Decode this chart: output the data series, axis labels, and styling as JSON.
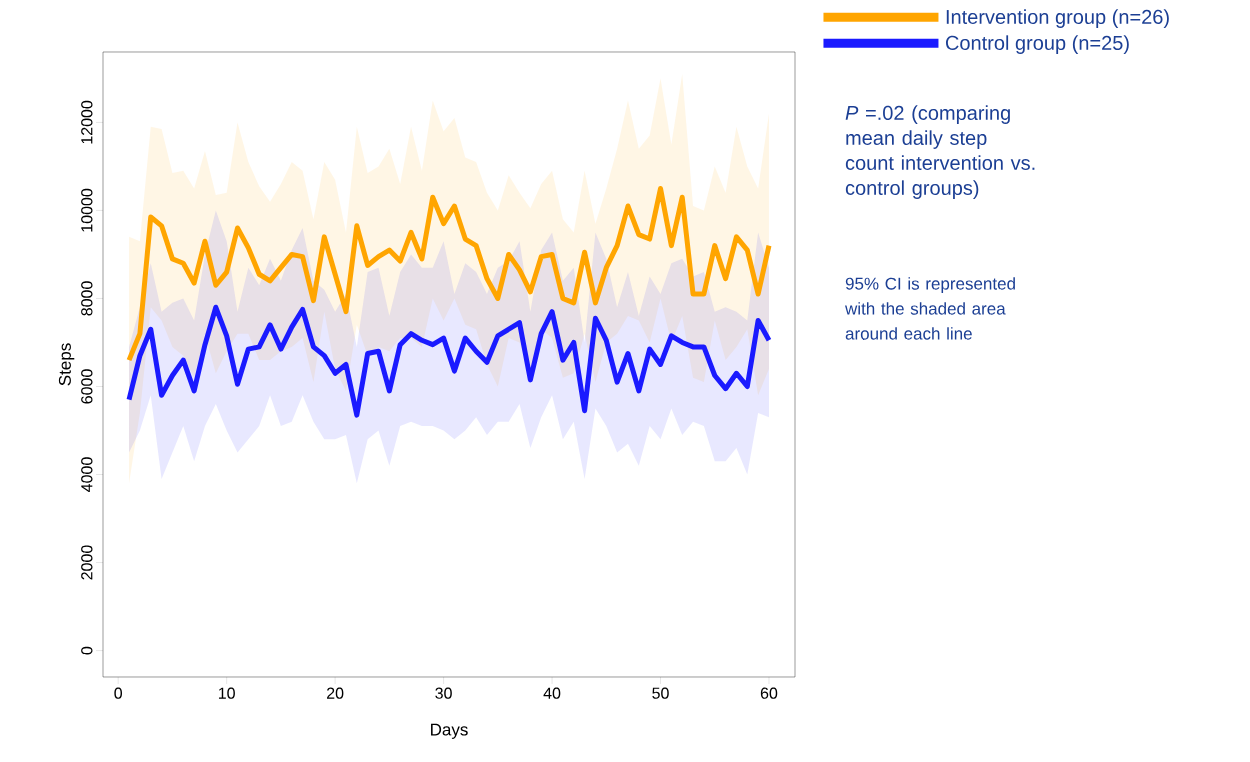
{
  "chart_data": {
    "type": "line",
    "xlabel": "Days",
    "ylabel": "Steps",
    "x": [
      1,
      2,
      3,
      4,
      5,
      6,
      7,
      8,
      9,
      10,
      11,
      12,
      13,
      14,
      15,
      16,
      17,
      18,
      19,
      20,
      21,
      22,
      23,
      24,
      25,
      26,
      27,
      28,
      29,
      30,
      31,
      32,
      33,
      34,
      35,
      36,
      37,
      38,
      39,
      40,
      41,
      42,
      43,
      44,
      45,
      46,
      47,
      48,
      49,
      50,
      51,
      52,
      53,
      54,
      55,
      56,
      57,
      58,
      59,
      60
    ],
    "xlim": [
      -1.4,
      62.4
    ],
    "xticks": [
      0,
      10,
      20,
      30,
      40,
      50,
      60
    ],
    "ylim": [
      -600,
      13600
    ],
    "yticks": [
      0,
      2000,
      4000,
      6000,
      8000,
      10000,
      12000
    ],
    "grid": false,
    "legend": "top right",
    "marker": "none",
    "line_style": "solid",
    "series": [
      {
        "name": "Intervention group (n=26)",
        "color": "#ffa500",
        "values": [
          6600,
          7200,
          9850,
          9650,
          8900,
          8800,
          8350,
          9300,
          8300,
          8600,
          9600,
          9150,
          8550,
          8400,
          8700,
          9000,
          8950,
          7950,
          9400,
          8550,
          7700,
          9650,
          8750,
          8950,
          9100,
          8850,
          9500,
          8900,
          10300,
          9700,
          10100,
          9350,
          9200,
          8450,
          8000,
          9000,
          8650,
          8150,
          8950,
          9000,
          8000,
          7900,
          9050,
          7900,
          8700,
          9200,
          10100,
          9450,
          9350,
          10500,
          9200,
          10300,
          8100,
          8100,
          9200,
          8450,
          9400,
          9100,
          8100,
          9200
        ],
        "upper": [
          9400,
          9300,
          11900,
          11850,
          10850,
          10900,
          10500,
          11350,
          10350,
          10400,
          12000,
          11100,
          10550,
          10200,
          10600,
          11100,
          10900,
          9800,
          11100,
          10700,
          9500,
          11900,
          10850,
          11000,
          11400,
          10600,
          11900,
          10900,
          12500,
          11800,
          12100,
          11200,
          11100,
          10400,
          10000,
          10800,
          10400,
          10050,
          10600,
          10900,
          9800,
          9500,
          10900,
          9700,
          10500,
          11400,
          12500,
          11400,
          11700,
          13000,
          11500,
          13100,
          10100,
          10000,
          11000,
          10400,
          11900,
          11000,
          10500,
          12200
        ],
        "lower": [
          3800,
          5400,
          7800,
          7500,
          6900,
          6700,
          6200,
          7200,
          6300,
          6800,
          7200,
          7200,
          6600,
          6600,
          6800,
          6900,
          7100,
          6100,
          7700,
          6400,
          5900,
          7400,
          6700,
          6900,
          6800,
          7100,
          7100,
          6900,
          8000,
          7500,
          8000,
          7400,
          7300,
          6500,
          6000,
          7100,
          7000,
          6300,
          7300,
          7100,
          6200,
          6300,
          7200,
          6100,
          7000,
          7200,
          7600,
          7500,
          7000,
          8000,
          7000,
          7600,
          6200,
          6100,
          7500,
          6600,
          6900,
          7300,
          5800,
          6400
        ]
      },
      {
        "name": "Control group (n=25)",
        "color": "#1a1aff",
        "values": [
          5700,
          6700,
          7300,
          5800,
          6250,
          6600,
          5900,
          6950,
          7800,
          7150,
          6050,
          6850,
          6900,
          7400,
          6850,
          7350,
          7750,
          6900,
          6700,
          6300,
          6500,
          5350,
          6750,
          6800,
          5900,
          6950,
          7200,
          7050,
          6950,
          7100,
          6350,
          7100,
          6800,
          6550,
          7150,
          7300,
          7450,
          6150,
          7200,
          7700,
          6600,
          7000,
          5450,
          7550,
          7050,
          6100,
          6750,
          5900,
          6850,
          6500,
          7150,
          7000,
          6900,
          6900,
          6250,
          5950,
          6300,
          6000,
          7500,
          7050
        ],
        "upper": [
          6900,
          7800,
          8800,
          7700,
          7900,
          8000,
          7500,
          9000,
          10000,
          9300,
          7700,
          8700,
          8300,
          8900,
          8400,
          9100,
          9600,
          8400,
          8200,
          7700,
          8100,
          6900,
          8600,
          8700,
          7600,
          8600,
          9000,
          8700,
          8700,
          9300,
          8100,
          8800,
          8600,
          8100,
          8700,
          8850,
          9300,
          7700,
          9100,
          9500,
          8400,
          8700,
          7000,
          9500,
          8900,
          7800,
          8600,
          7600,
          8500,
          8100,
          8800,
          8900,
          8500,
          8600,
          7700,
          7800,
          7700,
          7500,
          9500,
          8700
        ],
        "lower": [
          4500,
          5000,
          5800,
          3900,
          4500,
          5100,
          4300,
          5100,
          5600,
          5000,
          4500,
          4800,
          5100,
          5800,
          5100,
          5200,
          5800,
          5200,
          4800,
          4800,
          4900,
          3800,
          4800,
          5000,
          4200,
          5100,
          5200,
          5100,
          5100,
          5000,
          4800,
          5000,
          5300,
          4900,
          5200,
          5200,
          5600,
          4600,
          5300,
          5800,
          4800,
          5200,
          3900,
          5500,
          5100,
          4500,
          4700,
          4200,
          5100,
          4800,
          5500,
          4900,
          5200,
          5100,
          4300,
          4300,
          4600,
          4000,
          5400,
          5300
        ]
      }
    ],
    "annotations": [
      "*P* =.02 (comparing mean daily step count intervention vs. control groups)",
      "95% CI is represented with the shaded area around each line"
    ]
  }
}
